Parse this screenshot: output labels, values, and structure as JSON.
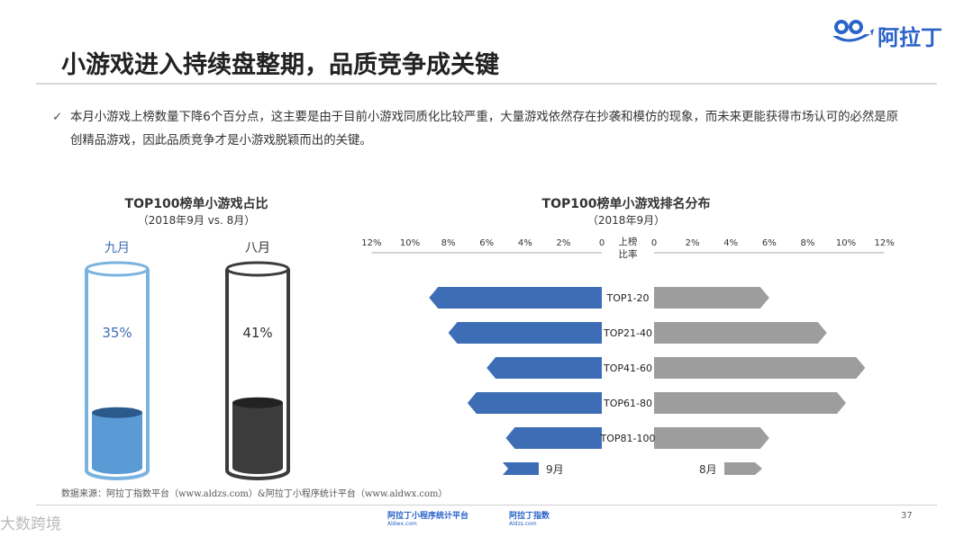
{
  "title": "小游戏进入持续盘整期，品质竞争成关键",
  "logo_text": "阿拉丁",
  "summary": "本月小游戏上榜数量下降6个百分点，这主要是由于目前小游戏同质化比较严重，大量游戏依然存在抄袭和模仿的现象，而未来更能获得市场认可的必然是原创精品游戏，因此品质竞争才是小游戏脱颖而出的关键。",
  "source": "数据来源：阿拉丁指数平台（www.aldzs.com）&阿拉丁小程序统计平台（www.aldwx.com）",
  "page_number": "37",
  "footer": {
    "logo1": "阿拉丁小程序统计平台",
    "logo1_sub": "Aldwx.com",
    "logo2": "阿拉丁指数",
    "logo2_sub": "Aldzs.com"
  },
  "watermark_corner": "大数跨境",
  "colors": {
    "sep": "#3d6db5",
    "aug": "#9d9d9d",
    "aug_dark": "#3c3c3c",
    "sep_light": "#5b9bd5"
  },
  "chart_data": [
    {
      "type": "bar",
      "title": "TOP100榜单小游戏占比",
      "subtitle": "（2018年9月 vs. 8月）",
      "categories": [
        "九月",
        "八月"
      ],
      "values": [
        35,
        41
      ],
      "value_labels": [
        "35%",
        "41%"
      ],
      "ylim": [
        0,
        100
      ]
    },
    {
      "type": "bar",
      "title": "TOP100榜单小游戏排名分布",
      "subtitle": "（2018年9月）",
      "center_label": "上榜比率",
      "categories": [
        "TOP1-20",
        "TOP21-40",
        "TOP41-60",
        "TOP61-80",
        "TOP81-100"
      ],
      "series": [
        {
          "name": "9月",
          "values": [
            9,
            8,
            6,
            7,
            5
          ]
        },
        {
          "name": "8月",
          "values": [
            6,
            9,
            11,
            10,
            6
          ]
        }
      ],
      "xlim": [
        0,
        12
      ],
      "ticks": [
        "12%",
        "10%",
        "8%",
        "6%",
        "4%",
        "2%",
        "0",
        "0",
        "2%",
        "4%",
        "6%",
        "8%",
        "10%",
        "12%"
      ],
      "legend": "bottom"
    }
  ]
}
